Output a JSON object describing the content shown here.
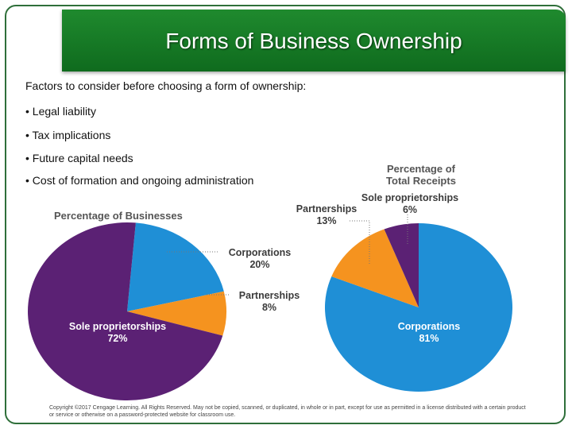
{
  "slide": {
    "title": "Forms of Business Ownership",
    "intro": "Factors to consider before choosing a form of ownership:",
    "bullets": [
      "• Legal liability",
      "• Tax implications",
      "• Future capital needs",
      "• Cost of formation and ongoing administration"
    ],
    "copyright": "Copyright ©2017 Cengage Learning. All Rights Reserved. May not be copied, scanned, or duplicated, in whole or in part, except for use as permitted in a license distributed with a certain product or service or otherwise on a password-protected website for classroom use."
  },
  "colors": {
    "sole_proprietorships": "#5b2174",
    "corporations": "#1f8fd6",
    "partnerships": "#f5931f",
    "title_bar": "#158026"
  },
  "chart_data": [
    {
      "type": "pie",
      "title": "Percentage of Businesses",
      "slices": [
        {
          "name": "Corporations",
          "value": 20,
          "label": "Corporations",
          "pct": "20%"
        },
        {
          "name": "Partnerships",
          "value": 8,
          "label": "Partnerships",
          "pct": "8%"
        },
        {
          "name": "Sole proprietorships",
          "value": 72,
          "label": "Sole proprietorships",
          "pct": "72%"
        }
      ]
    },
    {
      "type": "pie",
      "title": "Percentage of Total Receipts",
      "title_lines": [
        "Percentage of",
        "Total Receipts"
      ],
      "slices": [
        {
          "name": "Corporations",
          "value": 81,
          "label": "Corporations",
          "pct": "81%"
        },
        {
          "name": "Partnerships",
          "value": 13,
          "label": "Partnerships",
          "pct": "13%"
        },
        {
          "name": "Sole proprietorships",
          "value": 6,
          "label": "Sole proprietorships",
          "pct": "6%"
        }
      ]
    }
  ]
}
